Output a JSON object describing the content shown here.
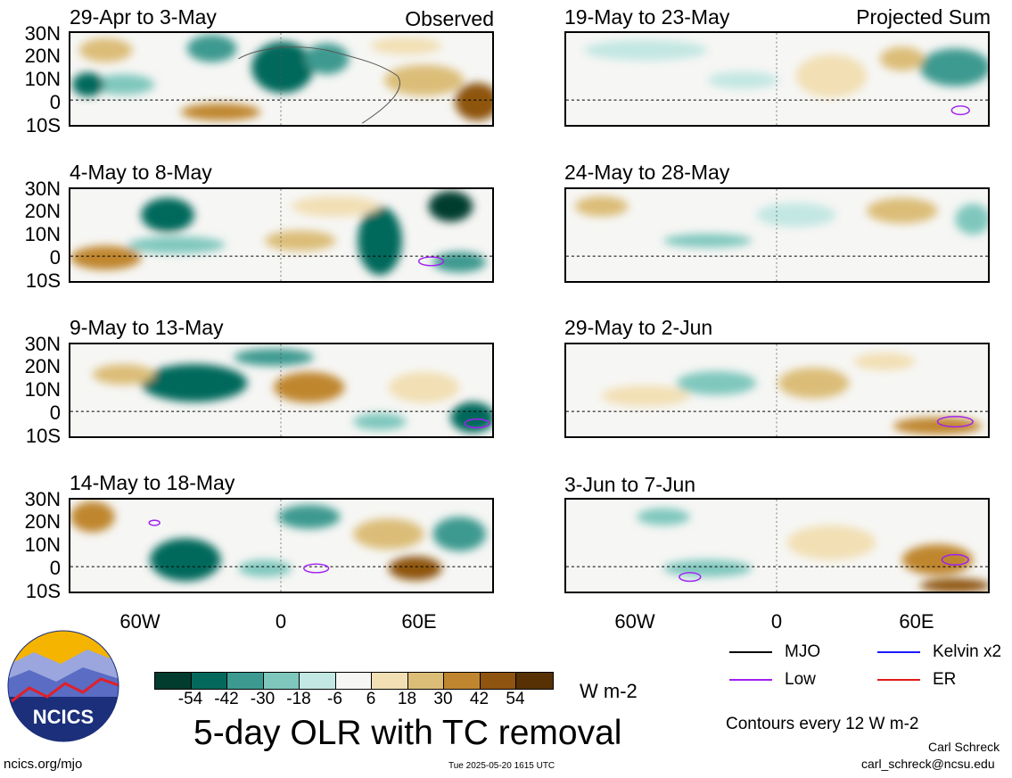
{
  "panels": {
    "obs": [
      {
        "period": "29-Apr to 3-May",
        "label": "Observed"
      },
      {
        "period": "4-May to 8-May",
        "label": ""
      },
      {
        "period": "9-May to 13-May",
        "label": ""
      },
      {
        "period": "14-May to 18-May",
        "label": ""
      }
    ],
    "proj": [
      {
        "period": "19-May to 23-May",
        "label": "Projected Sum"
      },
      {
        "period": "24-May to 28-May",
        "label": ""
      },
      {
        "period": "29-May to 2-Jun",
        "label": ""
      },
      {
        "period": "3-Jun to 7-Jun",
        "label": ""
      }
    ]
  },
  "axes": {
    "lat_labels": [
      "30N",
      "20N",
      "10N",
      "0",
      "10S"
    ],
    "lon_labels": [
      "60W",
      "0",
      "60E"
    ]
  },
  "colorbar": {
    "ticks": [
      "-54",
      "-42",
      "-30",
      "-18",
      "-6",
      "6",
      "18",
      "30",
      "42",
      "54"
    ],
    "colors": [
      "#013c2e",
      "#04695c",
      "#3c9a90",
      "#7fc7bd",
      "#c3e7e2",
      "#f6f6f4",
      "#f2dfb4",
      "#dcbd78",
      "#bf862f",
      "#8e5410",
      "#573104"
    ],
    "units": "W m-2"
  },
  "title": "5-day OLR with TC removal",
  "legend": {
    "items": [
      {
        "label": "MJO",
        "color": "#000000"
      },
      {
        "label": "Kelvin x2",
        "color": "#1a1aff"
      },
      {
        "label": "Low",
        "color": "#a020f0"
      },
      {
        "label": "ER",
        "color": "#e31a1c"
      }
    ],
    "note": "Contours every 12 W m-2"
  },
  "footer": {
    "url": "ncics.org/mjo",
    "timestamp": "Tue 2025-05-20 1615 UTC",
    "author": "Carl Schreck",
    "email": "carl_schreck@ncsu.edu"
  },
  "logo": {
    "text": "NCICS"
  }
}
